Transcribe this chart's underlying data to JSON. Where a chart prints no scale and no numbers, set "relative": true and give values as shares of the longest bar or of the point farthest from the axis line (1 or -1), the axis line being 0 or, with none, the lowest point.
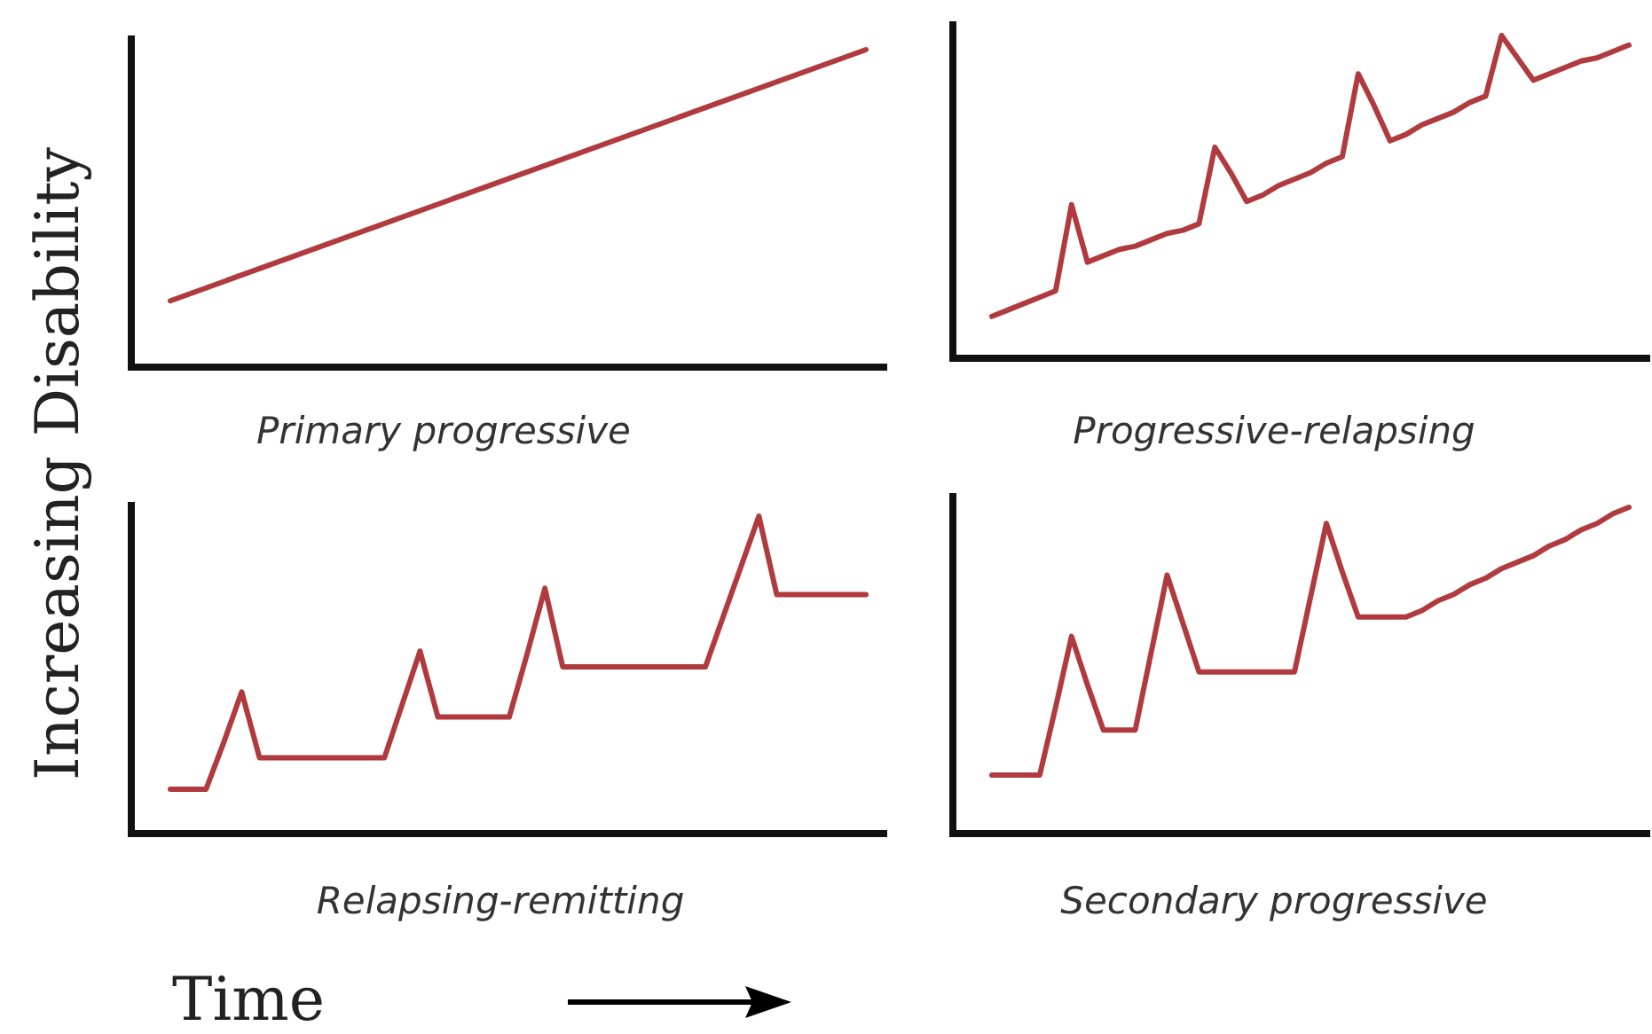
{
  "chart_data": [
    {
      "type": "line",
      "title": "Primary progressive",
      "ylabel": "Increasing Disability",
      "relative": true,
      "categories": [
        null,
        null
      ],
      "series": [
        {
          "color": "#b03a3e",
          "values": [
            0.2,
            1
          ]
        }
      ]
    },
    {
      "type": "line",
      "title": "Progressive-relapsing",
      "relative": true,
      "categories": [
        null,
        null,
        null,
        null,
        null,
        null,
        null,
        null,
        null,
        null,
        null,
        null,
        null,
        null,
        null,
        null,
        null,
        null,
        null,
        null,
        null,
        null,
        null,
        null,
        null,
        null,
        null,
        null,
        null,
        null,
        null,
        null,
        null,
        null,
        null,
        null,
        null,
        null,
        null,
        null,
        null
      ],
      "series": [
        {
          "color": "#b03a3e",
          "values": [
            0.12,
            0.14,
            0.16,
            0.18,
            0.2,
            0.47,
            0.29,
            0.31,
            0.33,
            0.34,
            0.36,
            0.38,
            0.39,
            0.41,
            0.65,
            0.57,
            0.48,
            0.5,
            0.53,
            0.55,
            0.57,
            0.6,
            0.62,
            0.88,
            0.78,
            0.67,
            0.69,
            0.72,
            0.74,
            0.76,
            0.79,
            0.81,
            1,
            0.93,
            0.86,
            0.88,
            0.9,
            0.92,
            0.93,
            0.95,
            0.97
          ]
        }
      ]
    },
    {
      "type": "line",
      "title": "Relapsing-remitting",
      "xlabel": "Time",
      "relative": true,
      "categories": [
        null,
        null,
        null,
        null,
        null,
        null,
        null,
        null,
        null,
        null,
        null,
        null,
        null,
        null,
        null,
        null,
        null,
        null,
        null,
        null,
        null,
        null,
        null,
        null,
        null,
        null,
        null,
        null,
        null,
        null,
        null,
        null,
        null,
        null,
        null,
        null,
        null,
        null,
        null,
        null
      ],
      "series": [
        {
          "color": "#b03a3e",
          "values": [
            0.13,
            0.13,
            0.13,
            0.28,
            0.44,
            0.23,
            0.23,
            0.23,
            0.23,
            0.23,
            0.23,
            0.23,
            0.23,
            0.4,
            0.57,
            0.36,
            0.36,
            0.36,
            0.36,
            0.36,
            0.56,
            0.77,
            0.52,
            0.52,
            0.52,
            0.52,
            0.52,
            0.52,
            0.52,
            0.52,
            0.52,
            0.68,
            0.84,
            1,
            0.75,
            0.75,
            0.75,
            0.75,
            0.75,
            0.75
          ]
        }
      ]
    },
    {
      "type": "line",
      "title": "Secondary progressive",
      "relative": true,
      "categories": [
        null,
        null,
        null,
        null,
        null,
        null,
        null,
        null,
        null,
        null,
        null,
        null,
        null,
        null,
        null,
        null,
        null,
        null,
        null,
        null,
        null,
        null,
        null,
        null,
        null,
        null,
        null,
        null,
        null,
        null,
        null,
        null,
        null,
        null,
        null,
        null,
        null,
        null,
        null,
        null,
        null
      ],
      "series": [
        {
          "color": "#b03a3e",
          "values": [
            0.17,
            0.17,
            0.17,
            0.17,
            0.38,
            0.6,
            0.45,
            0.31,
            0.31,
            0.31,
            0.55,
            0.79,
            0.64,
            0.49,
            0.49,
            0.49,
            0.49,
            0.49,
            0.49,
            0.49,
            0.72,
            0.95,
            0.8,
            0.66,
            0.66,
            0.66,
            0.66,
            0.68,
            0.71,
            0.73,
            0.76,
            0.78,
            0.81,
            0.83,
            0.85,
            0.88,
            0.9,
            0.93,
            0.95,
            0.98,
            1
          ]
        }
      ]
    }
  ]
}
